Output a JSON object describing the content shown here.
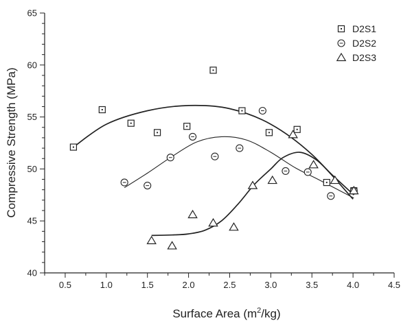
{
  "chart_data": {
    "type": "scatter",
    "xlabel_main": "Surface Area (m",
    "xlabel_sup": "2",
    "xlabel_end": "/kg)",
    "ylabel": "Compressive Strength (MPa)",
    "xlim": [
      0.25,
      4.5
    ],
    "ylim": [
      40,
      65
    ],
    "x_ticks": [
      "0.5",
      "1.0",
      "1.5",
      "2.0",
      "2.5",
      "3.0",
      "3.5",
      "4.0",
      "4.5"
    ],
    "y_ticks": [
      "40",
      "45",
      "50",
      "55",
      "60",
      "65"
    ],
    "grid": false,
    "legend_position": "top-right",
    "series": [
      {
        "name": "D2S1",
        "marker": "square",
        "points": [
          [
            0.6,
            52.1
          ],
          [
            0.95,
            55.7
          ],
          [
            1.3,
            54.4
          ],
          [
            1.62,
            53.5
          ],
          [
            1.98,
            54.1
          ],
          [
            2.3,
            59.5
          ],
          [
            2.65,
            55.6
          ],
          [
            2.98,
            53.5
          ],
          [
            3.32,
            53.8
          ],
          [
            3.68,
            48.7
          ],
          [
            4.01,
            47.9
          ]
        ],
        "curve": [
          [
            0.6,
            52.1
          ],
          [
            1.0,
            54.3
          ],
          [
            1.5,
            55.6
          ],
          [
            2.0,
            56.1
          ],
          [
            2.5,
            55.8
          ],
          [
            3.0,
            54.3
          ],
          [
            3.5,
            51.4
          ],
          [
            4.0,
            47.1
          ]
        ]
      },
      {
        "name": "D2S2",
        "marker": "circle",
        "points": [
          [
            1.22,
            48.7
          ],
          [
            1.5,
            48.4
          ],
          [
            1.78,
            51.1
          ],
          [
            2.05,
            53.1
          ],
          [
            2.32,
            51.2
          ],
          [
            2.62,
            52.0
          ],
          [
            2.9,
            55.6
          ],
          [
            3.18,
            49.8
          ],
          [
            3.45,
            49.7
          ],
          [
            3.73,
            47.4
          ],
          [
            4.01,
            47.9
          ]
        ],
        "curve": [
          [
            1.22,
            48.2
          ],
          [
            1.5,
            49.6
          ],
          [
            1.8,
            51.2
          ],
          [
            2.1,
            52.6
          ],
          [
            2.4,
            53.1
          ],
          [
            2.7,
            52.8
          ],
          [
            3.0,
            51.6
          ],
          [
            3.3,
            50.1
          ],
          [
            3.6,
            48.9
          ],
          [
            4.01,
            47.2
          ]
        ]
      },
      {
        "name": "D2S3",
        "marker": "triangle",
        "points": [
          [
            1.55,
            43.1
          ],
          [
            1.8,
            42.6
          ],
          [
            2.05,
            45.6
          ],
          [
            2.3,
            44.8
          ],
          [
            2.55,
            44.4
          ],
          [
            2.78,
            48.4
          ],
          [
            3.02,
            48.9
          ],
          [
            3.27,
            53.3
          ],
          [
            3.52,
            50.4
          ],
          [
            3.78,
            48.9
          ],
          [
            4.01,
            47.9
          ]
        ],
        "curve": [
          [
            1.55,
            43.6
          ],
          [
            1.8,
            43.65
          ],
          [
            2.0,
            43.75
          ],
          [
            2.2,
            44.1
          ],
          [
            2.4,
            45.0
          ],
          [
            2.6,
            46.6
          ],
          [
            2.8,
            48.5
          ],
          [
            3.0,
            50.0
          ],
          [
            3.15,
            51.1
          ],
          [
            3.35,
            51.6
          ],
          [
            3.55,
            50.9
          ],
          [
            3.75,
            49.4
          ],
          [
            4.01,
            47.5
          ]
        ]
      }
    ]
  }
}
